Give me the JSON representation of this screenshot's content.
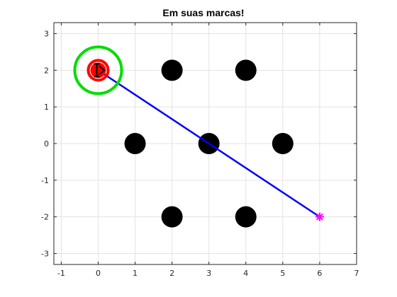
{
  "chart_data": {
    "type": "scatter",
    "title": "Em suas marcas!",
    "xlabel": "",
    "ylabel": "",
    "xlim": [
      -1.2,
      7
    ],
    "ylim": [
      -3.3,
      3.3
    ],
    "grid": true,
    "x_ticks": [
      "-1",
      "0",
      "1",
      "2",
      "3",
      "4",
      "5",
      "6",
      "7"
    ],
    "y_ticks": [
      "-3",
      "-2",
      "-1",
      "0",
      "1",
      "2",
      "3"
    ],
    "x_tick_values": [
      -1,
      0,
      1,
      2,
      3,
      4,
      5,
      6,
      7
    ],
    "y_tick_values": [
      -3,
      -2,
      -1,
      0,
      1,
      2,
      3
    ],
    "obstacles": {
      "color": "#000000",
      "points": [
        {
          "x": 2,
          "y": 2
        },
        {
          "x": 4,
          "y": 2
        },
        {
          "x": 1,
          "y": 0
        },
        {
          "x": 3,
          "y": 0
        },
        {
          "x": 5,
          "y": 0
        },
        {
          "x": 2,
          "y": -2
        },
        {
          "x": 4,
          "y": -2
        }
      ]
    },
    "path_line": {
      "color": "#0000ff",
      "points": [
        {
          "x": 0,
          "y": 2
        },
        {
          "x": 6,
          "y": -2
        }
      ]
    },
    "start": {
      "x": 0,
      "y": 2,
      "color": "#ff0000",
      "ring_color": "#00dd00"
    },
    "goal": {
      "x": 6,
      "y": -2,
      "color": "#ff00ff"
    }
  }
}
